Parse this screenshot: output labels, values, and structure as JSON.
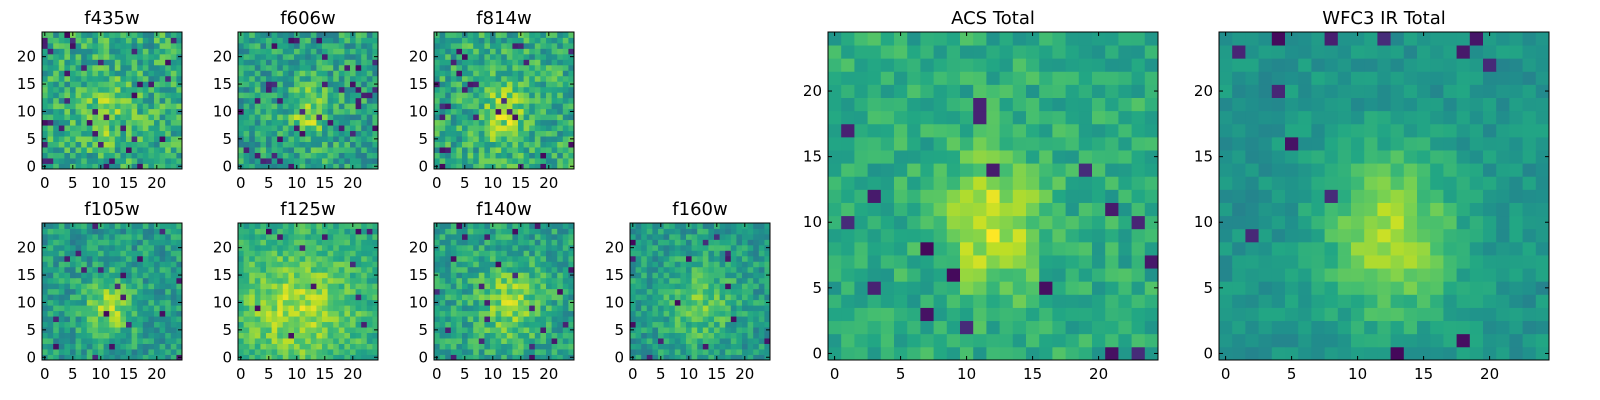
{
  "chart_data": [
    {
      "type": "heatmap",
      "title": "f435w",
      "grid": false,
      "colormap": "viridis",
      "size": [
        25,
        25
      ],
      "xticks": [
        "0",
        "5",
        "10",
        "15",
        "20"
      ],
      "yticks": [
        "0",
        "5",
        "10",
        "15",
        "20"
      ],
      "character": "noisy, weak central source"
    },
    {
      "type": "heatmap",
      "title": "f606w",
      "grid": false,
      "colormap": "viridis",
      "size": [
        25,
        25
      ],
      "xticks": [
        "0",
        "5",
        "10",
        "15",
        "20"
      ],
      "yticks": [
        "0",
        "5",
        "10",
        "15",
        "20"
      ],
      "character": "noisy, central source"
    },
    {
      "type": "heatmap",
      "title": "f814w",
      "grid": false,
      "colormap": "viridis",
      "size": [
        25,
        25
      ],
      "xticks": [
        "0",
        "5",
        "10",
        "15",
        "20"
      ],
      "yticks": [
        "0",
        "5",
        "10",
        "15",
        "20"
      ],
      "character": "noisy, central source"
    },
    {
      "type": "heatmap",
      "title": "f105w",
      "grid": false,
      "colormap": "viridis",
      "size": [
        25,
        25
      ],
      "xticks": [
        "0",
        "5",
        "10",
        "15",
        "20"
      ],
      "yticks": [
        "0",
        "5",
        "10",
        "15",
        "20"
      ],
      "character": "central source"
    },
    {
      "type": "heatmap",
      "title": "f125w",
      "grid": false,
      "colormap": "viridis",
      "size": [
        25,
        25
      ],
      "xticks": [
        "0",
        "5",
        "10",
        "15",
        "20"
      ],
      "yticks": [
        "0",
        "5",
        "10",
        "15",
        "20"
      ],
      "character": "extended bright region"
    },
    {
      "type": "heatmap",
      "title": "f140w",
      "grid": false,
      "colormap": "viridis",
      "size": [
        25,
        25
      ],
      "xticks": [
        "0",
        "5",
        "10",
        "15",
        "20"
      ],
      "yticks": [
        "0",
        "5",
        "10",
        "15",
        "20"
      ],
      "character": "central source"
    },
    {
      "type": "heatmap",
      "title": "f160w",
      "grid": false,
      "colormap": "viridis",
      "size": [
        25,
        25
      ],
      "xticks": [
        "0",
        "5",
        "10",
        "15",
        "20"
      ],
      "yticks": [
        "0",
        "5",
        "10",
        "15",
        "20"
      ],
      "character": "central source"
    },
    {
      "type": "heatmap",
      "title": "ACS Total",
      "grid": false,
      "colormap": "viridis",
      "size": [
        25,
        25
      ],
      "xticks": [
        "0",
        "5",
        "10",
        "15",
        "20"
      ],
      "yticks": [
        "0",
        "5",
        "10",
        "15",
        "20"
      ],
      "character": "bright peak near x=11-13, y=8-13"
    },
    {
      "type": "heatmap",
      "title": "WFC3 IR Total",
      "grid": false,
      "colormap": "viridis",
      "size": [
        25,
        25
      ],
      "xticks": [
        "0",
        "5",
        "10",
        "15",
        "20"
      ],
      "yticks": [
        "0",
        "5",
        "10",
        "15",
        "20"
      ],
      "character": "bright peak near x=11-14, y=6-14"
    }
  ]
}
